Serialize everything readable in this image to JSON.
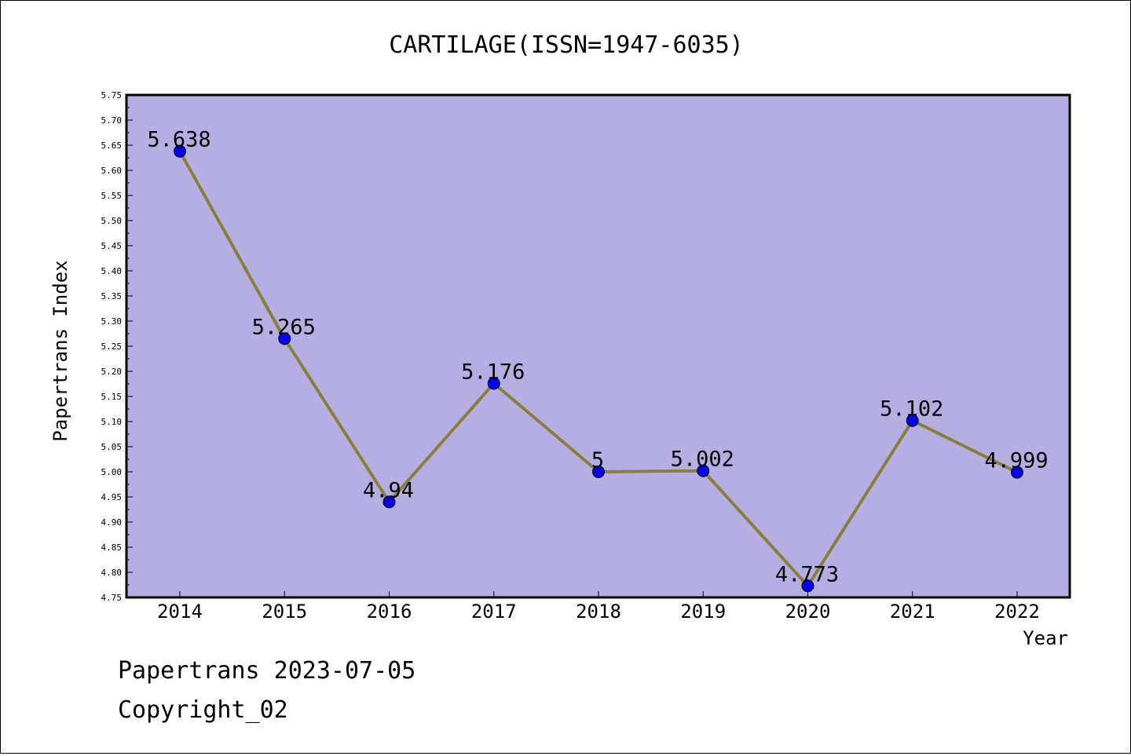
{
  "chart_data": {
    "type": "line",
    "title": "CARTILAGE(ISSN=1947-6035)",
    "xlabel": "Year",
    "ylabel": "Papertrans Index",
    "categories": [
      "2014",
      "2015",
      "2016",
      "2017",
      "2018",
      "2019",
      "2020",
      "2021",
      "2022"
    ],
    "series": [
      {
        "values": [
          5.638,
          5.265,
          4.94,
          5.176,
          5,
          5.002,
          4.773,
          5.102,
          4.999
        ],
        "labels": [
          "5.638",
          "5.265",
          "4.94",
          "5.176",
          "5",
          "5.002",
          "4.773",
          "5.102",
          "4.999"
        ]
      }
    ],
    "ylim": [
      4.75,
      5.75
    ],
    "yticks": [
      "4.75",
      "4.80",
      "4.85",
      "4.90",
      "4.95",
      "5.00",
      "5.05",
      "5.10",
      "5.15",
      "5.20",
      "5.25",
      "5.30",
      "5.35",
      "5.40",
      "5.45",
      "5.50",
      "5.55",
      "5.60",
      "5.65",
      "5.70",
      "5.75"
    ],
    "grid": false,
    "colors": {
      "plot_background": "#b5aee3",
      "line": "#8b7d3a",
      "marker": "#0000ee"
    }
  },
  "footer": {
    "line1": "Papertrans 2023-07-05",
    "line2": "Copyright_02"
  }
}
